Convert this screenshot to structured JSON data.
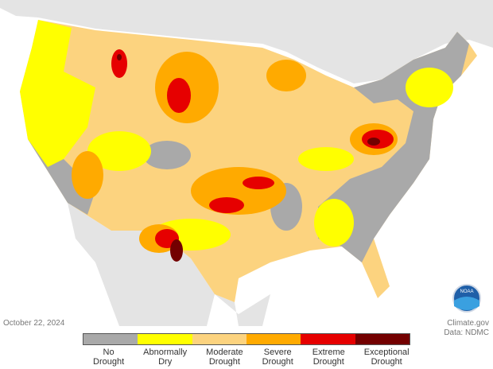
{
  "date": "October 22, 2024",
  "credit": "Climate.gov",
  "source": "Data: NDMC",
  "logo": "NOAA",
  "legend": [
    {
      "label": "No Drought",
      "color": "#a9a9a9"
    },
    {
      "label": "Abnormally Dry",
      "color": "#ffff00"
    },
    {
      "label": "Moderate Drought",
      "color": "#fcd37f"
    },
    {
      "label": "Severe Drought",
      "color": "#ffaa00"
    },
    {
      "label": "Extreme Drought",
      "color": "#e60000"
    },
    {
      "label": "Exceptional Drought",
      "color": "#730000"
    }
  ]
}
